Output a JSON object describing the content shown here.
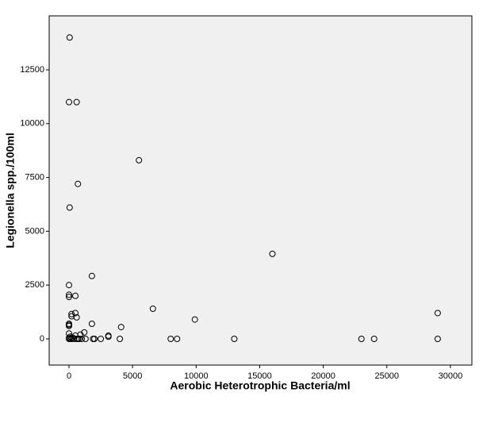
{
  "chart_data": {
    "type": "scatter",
    "xlabel": "Aerobic Heterotrophic Bacteria/ml",
    "ylabel": "Legionella spp./100ml",
    "x": [
      50,
      0,
      600,
      5500,
      700,
      50,
      16000,
      1800,
      0,
      0,
      0,
      500,
      6600,
      29000,
      500,
      200,
      200,
      600,
      9900,
      1800,
      0,
      0,
      0,
      4100,
      1200,
      900,
      0,
      3100,
      3100,
      500,
      100,
      8000,
      8500,
      13000,
      23000,
      24000,
      29000,
      4000,
      2500,
      2000,
      1900,
      1300,
      1000,
      800,
      600,
      400,
      200,
      100,
      0,
      0,
      300,
      700
    ],
    "values": [
      14000,
      11000,
      11000,
      8300,
      7200,
      6100,
      3950,
      2920,
      2500,
      2050,
      1950,
      2000,
      1400,
      1200,
      1200,
      1150,
      1050,
      1000,
      900,
      700,
      700,
      650,
      600,
      550,
      300,
      200,
      250,
      150,
      100,
      150,
      100,
      0,
      0,
      0,
      0,
      0,
      0,
      0,
      0,
      0,
      0,
      0,
      0,
      0,
      0,
      0,
      0,
      0,
      0,
      50,
      50,
      0
    ],
    "xlim": [
      -1560,
      31690
    ],
    "xticks": [
      0,
      5000,
      10000,
      15000,
      20000,
      25000,
      30000
    ],
    "ylim": [
      -1217,
      15007
    ],
    "yticks": [
      0,
      2500,
      5000,
      7500,
      10000,
      12500
    ],
    "marker_color": "#000000",
    "plot_background": "#f0f0f0"
  }
}
